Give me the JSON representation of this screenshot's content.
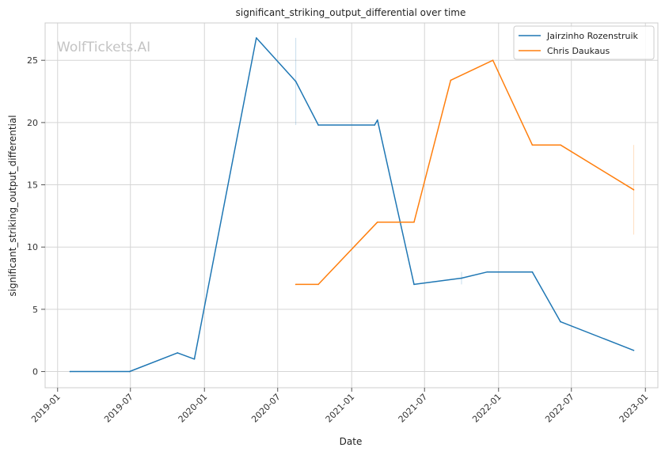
{
  "chart_data": {
    "type": "line",
    "title": "significant_striking_output_differential over time",
    "xlabel": "Date",
    "ylabel": "significant_striking_output_differential",
    "watermark": "WolfTickets.AI",
    "x_ticks": [
      "2019-01",
      "2019-07",
      "2020-01",
      "2020-07",
      "2021-01",
      "2021-07",
      "2022-01",
      "2022-07",
      "2023-01"
    ],
    "y_ticks": [
      "0",
      "5",
      "10",
      "15",
      "20",
      "25"
    ],
    "xlim": [
      "2018-12-01",
      "2023-02-01"
    ],
    "ylim": [
      -1.3,
      28.0
    ],
    "grid": true,
    "legend_position": "top-right",
    "series": [
      {
        "name": "Jairzinho Rozenstruik",
        "color": "#1f77b4",
        "points": [
          {
            "x": "2019-02-01",
            "y": 0.0
          },
          {
            "x": "2019-06-29",
            "y": 0.0
          },
          {
            "x": "2019-10-26",
            "y": 1.5
          },
          {
            "x": "2019-12-07",
            "y": 1.0
          },
          {
            "x": "2020-05-09",
            "y": 26.8
          },
          {
            "x": "2020-08-15",
            "y": 23.3
          },
          {
            "x": "2020-10-10",
            "y": 19.8
          },
          {
            "x": "2021-02-27",
            "y": 19.8
          },
          {
            "x": "2021-03-06",
            "y": 20.2
          },
          {
            "x": "2021-06-05",
            "y": 7.0
          },
          {
            "x": "2021-10-01",
            "y": 7.5
          },
          {
            "x": "2021-12-04",
            "y": 8.0
          },
          {
            "x": "2022-03-26",
            "y": 8.0
          },
          {
            "x": "2022-06-04",
            "y": 4.0
          },
          {
            "x": "2022-12-03",
            "y": 1.7
          }
        ],
        "error_bars": [
          {
            "x": "2020-08-15",
            "low": 19.8,
            "high": 26.8
          },
          {
            "x": "2021-10-01",
            "low": 7.0,
            "high": 8.0
          }
        ]
      },
      {
        "name": "Chris Daukaus",
        "color": "#ff7f0e",
        "points": [
          {
            "x": "2020-08-15",
            "y": 7.0
          },
          {
            "x": "2020-10-10",
            "y": 7.0
          },
          {
            "x": "2021-03-06",
            "y": 12.0
          },
          {
            "x": "2021-06-05",
            "y": 12.0
          },
          {
            "x": "2021-09-04",
            "y": 23.4
          },
          {
            "x": "2021-12-18",
            "y": 25.0
          },
          {
            "x": "2022-03-26",
            "y": 18.2
          },
          {
            "x": "2022-06-04",
            "y": 18.2
          },
          {
            "x": "2022-12-03",
            "y": 14.6
          }
        ],
        "error_bars": [
          {
            "x": "2022-12-03",
            "low": 11.0,
            "high": 18.2
          }
        ]
      }
    ]
  }
}
